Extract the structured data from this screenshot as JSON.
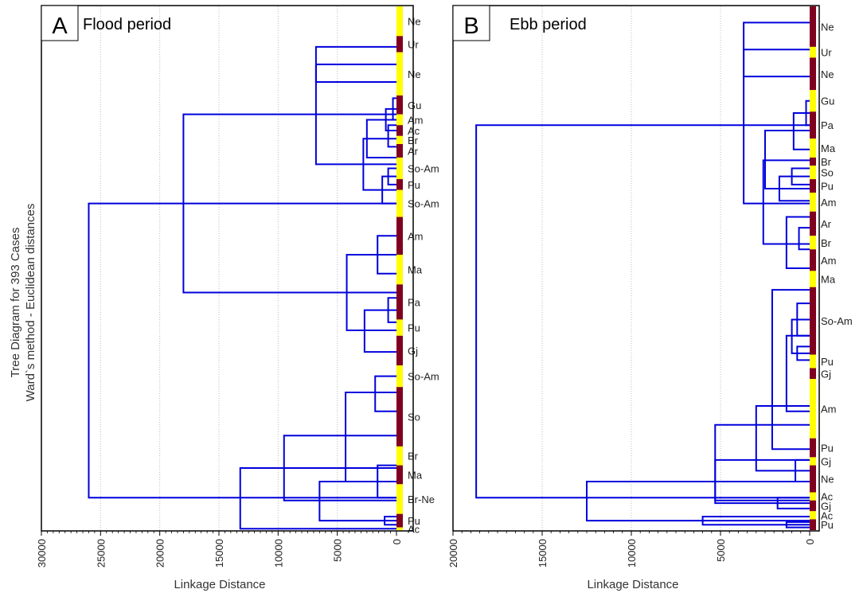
{
  "figure": {
    "ylabel_line1": "Tree Diagram for 393 Cases",
    "ylabel_line2": "Ward`s method - Euclidean distances"
  },
  "colors": {
    "line": "#0000dd",
    "band_yellow": "#ffff00",
    "band_maroon": "#800020",
    "grid": "#bbbbbb"
  },
  "chart_data": [
    {
      "type": "dendrogram",
      "panel_letter": "A",
      "title": "Flood period",
      "xlabel": "Linkage Distance",
      "xlim": [
        30000,
        0
      ],
      "xticks": [
        "30000",
        "25000",
        "20000",
        "15000",
        "10000",
        "5000",
        "0"
      ],
      "xtick_values": [
        30000,
        25000,
        20000,
        15000,
        10000,
        5000,
        0
      ],
      "grid": "vertical dotted",
      "groups": [
        {
          "label": "Ne",
          "start": 0,
          "end": 11,
          "color": "yellow"
        },
        {
          "label": "Ur",
          "start": 11,
          "end": 17,
          "color": "maroon"
        },
        {
          "label": "Ne",
          "start": 17,
          "end": 33,
          "color": "yellow"
        },
        {
          "label": "Gu",
          "start": 33,
          "end": 40,
          "color": "maroon"
        },
        {
          "label": "Am",
          "start": 40,
          "end": 44,
          "color": "yellow"
        },
        {
          "label": "Ac",
          "start": 44,
          "end": 48,
          "color": "maroon"
        },
        {
          "label": "Br",
          "start": 48,
          "end": 51,
          "color": "yellow"
        },
        {
          "label": "Ar",
          "start": 51,
          "end": 56,
          "color": "maroon"
        },
        {
          "label": "So-Am",
          "start": 56,
          "end": 64,
          "color": "yellow"
        },
        {
          "label": "Pu",
          "start": 64,
          "end": 68,
          "color": "maroon"
        },
        {
          "label": "So-Am",
          "start": 68,
          "end": 78,
          "color": "yellow"
        },
        {
          "label": "Am",
          "start": 78,
          "end": 92,
          "color": "maroon"
        },
        {
          "label": "Ma",
          "start": 92,
          "end": 103,
          "color": "yellow"
        },
        {
          "label": "Pa",
          "start": 103,
          "end": 116,
          "color": "maroon"
        },
        {
          "label": "Pu",
          "start": 116,
          "end": 122,
          "color": "yellow"
        },
        {
          "label": "Gj",
          "start": 122,
          "end": 133,
          "color": "maroon"
        },
        {
          "label": "So-Am",
          "start": 133,
          "end": 141,
          "color": "yellow"
        },
        {
          "label": "So",
          "start": 141,
          "end": 163,
          "color": "maroon"
        },
        {
          "label": "Br",
          "start": 163,
          "end": 170,
          "color": "yellow"
        },
        {
          "label": "Ma",
          "start": 170,
          "end": 177,
          "color": "maroon"
        },
        {
          "label": "Br-Ne",
          "start": 177,
          "end": 188,
          "color": "yellow"
        },
        {
          "label": "Pu",
          "start": 188,
          "end": 193,
          "color": "maroon"
        },
        {
          "label": "Ac",
          "start": 193,
          "end": 194,
          "color": "yellow"
        }
      ],
      "merges": [
        {
          "h": 6800,
          "left": {
            "p": 15
          },
          "right": {
            "p": 28
          },
          "p": 21.5
        },
        {
          "h": 300,
          "left": {
            "p": 34
          },
          "right": {
            "p": 42
          },
          "p": 38
        },
        {
          "h": 900,
          "left": {
            "p": 38
          },
          "right": {
            "p": 46
          },
          "p": 42
        },
        {
          "h": 700,
          "left": {
            "p": 44
          },
          "right": {
            "p": 52
          },
          "p": 48
        },
        {
          "h": 2500,
          "left": {
            "p": 42
          },
          "right": {
            "p": 56
          },
          "p": 49
        },
        {
          "h": 700,
          "left": {
            "p": 60
          },
          "right": {
            "p": 66
          },
          "p": 63
        },
        {
          "h": 1200,
          "left": {
            "p": 63
          },
          "right": {
            "p": 73
          },
          "p": 68
        },
        {
          "h": 2800,
          "left": {
            "p": 49
          },
          "right": {
            "p": 68
          },
          "p": 58.5
        },
        {
          "h": 6800,
          "left": {
            "p": 21.5
          },
          "right": {
            "p": 58.5
          },
          "p": 40
        },
        {
          "h": 1600,
          "left": {
            "p": 85
          },
          "right": {
            "p": 99
          },
          "p": 92
        },
        {
          "h": 700,
          "left": {
            "p": 108
          },
          "right": {
            "p": 117
          },
          "p": 112.5
        },
        {
          "h": 2700,
          "left": {
            "p": 112.5
          },
          "right": {
            "p": 128
          },
          "p": 120
        },
        {
          "h": 4200,
          "left": {
            "p": 92
          },
          "right": {
            "p": 120
          },
          "p": 106
        },
        {
          "h": 18000,
          "left": {
            "p": 40
          },
          "right": {
            "p": 106
          },
          "p": 73
        },
        {
          "h": 1800,
          "left": {
            "p": 137
          },
          "right": {
            "p": 150
          },
          "p": 143
        },
        {
          "h": 1600,
          "left": {
            "p": 170
          },
          "right": {
            "p": 182
          },
          "p": 176
        },
        {
          "h": 4300,
          "left": {
            "p": 143
          },
          "right": {
            "p": 176
          },
          "p": 159
        },
        {
          "h": 1000,
          "left": {
            "p": 189
          },
          "right": {
            "p": 192
          },
          "p": 190.5
        },
        {
          "h": 6500,
          "left": {
            "p": 176
          },
          "right": {
            "p": 190.5
          },
          "p": 183
        },
        {
          "h": 9500,
          "left": {
            "p": 159
          },
          "right": {
            "p": 183
          },
          "p": 171
        },
        {
          "h": 13200,
          "left": {
            "p": 171
          },
          "right": {
            "p": 193.5
          },
          "p": 182
        },
        {
          "h": 26000,
          "left": {
            "p": 73
          },
          "right": {
            "p": 182
          },
          "p": 128
        }
      ]
    },
    {
      "type": "dendrogram",
      "panel_letter": "B",
      "title": "Ebb period",
      "xlabel": "Linkage Distance",
      "xlim": [
        20000,
        0
      ],
      "xticks": [
        "20000",
        "15000",
        "10000",
        "5000",
        "0"
      ],
      "xtick_values": [
        20000,
        15000,
        10000,
        5000,
        0
      ],
      "grid": "vertical dotted",
      "groups": [
        {
          "label": "Ne",
          "start": 0,
          "end": 15,
          "color": "maroon"
        },
        {
          "label": "Ur",
          "start": 15,
          "end": 19,
          "color": "yellow"
        },
        {
          "label": "Ne",
          "start": 19,
          "end": 31,
          "color": "maroon"
        },
        {
          "label": "Gu",
          "start": 31,
          "end": 39,
          "color": "yellow"
        },
        {
          "label": "Pa",
          "start": 39,
          "end": 49,
          "color": "maroon"
        },
        {
          "label": "Ma",
          "start": 49,
          "end": 56,
          "color": "yellow"
        },
        {
          "label": "Br",
          "start": 56,
          "end": 59,
          "color": "maroon"
        },
        {
          "label": "So",
          "start": 59,
          "end": 64,
          "color": "yellow"
        },
        {
          "label": "Pu",
          "start": 64,
          "end": 69,
          "color": "maroon"
        },
        {
          "label": "Am",
          "start": 69,
          "end": 76,
          "color": "yellow"
        },
        {
          "label": "Ar",
          "start": 76,
          "end": 85,
          "color": "maroon"
        },
        {
          "label": "Br",
          "start": 85,
          "end": 90,
          "color": "yellow"
        },
        {
          "label": "Am",
          "start": 90,
          "end": 98,
          "color": "maroon"
        },
        {
          "label": "Ma",
          "start": 98,
          "end": 104,
          "color": "yellow"
        },
        {
          "label": "So-Am",
          "start": 104,
          "end": 129,
          "color": "maroon"
        },
        {
          "label": "Pu",
          "start": 129,
          "end": 134,
          "color": "yellow"
        },
        {
          "label": "Gj",
          "start": 134,
          "end": 138,
          "color": "maroon"
        },
        {
          "label": "Am",
          "start": 138,
          "end": 160,
          "color": "yellow"
        },
        {
          "label": "Pu",
          "start": 160,
          "end": 167,
          "color": "maroon"
        },
        {
          "label": "Gj",
          "start": 167,
          "end": 170,
          "color": "yellow"
        },
        {
          "label": "Ne",
          "start": 170,
          "end": 180,
          "color": "maroon"
        },
        {
          "label": "Ac",
          "start": 180,
          "end": 183,
          "color": "yellow"
        },
        {
          "label": "Gj",
          "start": 183,
          "end": 187,
          "color": "maroon"
        },
        {
          "label": "Ac",
          "start": 187,
          "end": 190,
          "color": "yellow"
        },
        {
          "label": "Pu",
          "start": 190,
          "end": 194,
          "color": "maroon"
        }
      ],
      "merges": [
        {
          "h": 3700,
          "left": {
            "p": 6
          },
          "right": {
            "p": 26
          },
          "p": 16
        },
        {
          "h": 200,
          "left": {
            "p": 35
          },
          "right": {
            "p": 44
          },
          "p": 39.5
        },
        {
          "h": 900,
          "left": {
            "p": 39.5
          },
          "right": {
            "p": 53
          },
          "p": 46
        },
        {
          "h": 1000,
          "left": {
            "p": 60
          },
          "right": {
            "p": 66
          },
          "p": 63
        },
        {
          "h": 1700,
          "left": {
            "p": 63
          },
          "right": {
            "p": 72
          },
          "p": 67.5
        },
        {
          "h": 2500,
          "left": {
            "p": 46
          },
          "right": {
            "p": 67.5
          },
          "p": 57
        },
        {
          "h": 600,
          "left": {
            "p": 82
          },
          "right": {
            "p": 90
          },
          "p": 86
        },
        {
          "h": 1300,
          "left": {
            "p": 78
          },
          "right": {
            "p": 97
          },
          "p": 88
        },
        {
          "h": 2600,
          "left": {
            "p": 57
          },
          "right": {
            "p": 88
          },
          "p": 73
        },
        {
          "h": 3700,
          "left": {
            "p": 16
          },
          "right": {
            "p": 73
          },
          "p": 44
        },
        {
          "h": 700,
          "left": {
            "p": 110
          },
          "right": {
            "p": 122
          },
          "p": 116
        },
        {
          "h": 700,
          "left": {
            "p": 126
          },
          "right": {
            "p": 131
          },
          "p": 128.5
        },
        {
          "h": 1000,
          "left": {
            "p": 116
          },
          "right": {
            "p": 128.5
          },
          "p": 122
        },
        {
          "h": 1300,
          "left": {
            "p": 122
          },
          "right": {
            "p": 150
          },
          "p": 136
        },
        {
          "h": 2100,
          "left": {
            "p": 105
          },
          "right": {
            "p": 164
          },
          "p": 134
        },
        {
          "h": 800,
          "left": {
            "p": 168
          },
          "right": {
            "p": 176
          },
          "p": 172
        },
        {
          "h": 3000,
          "left": {
            "p": 148
          },
          "right": {
            "p": 172
          },
          "p": 160
        },
        {
          "h": 5300,
          "left": {
            "p": 155
          },
          "right": {
            "p": 183
          },
          "p": 168
        },
        {
          "h": 1800,
          "left": {
            "p": 182
          },
          "right": {
            "p": 186
          },
          "p": 184
        },
        {
          "h": 5300,
          "left": {
            "p": 168
          },
          "right": {
            "p": 184
          },
          "p": 176
        },
        {
          "h": 1300,
          "left": {
            "p": 191
          },
          "right": {
            "p": 193
          },
          "p": 192
        },
        {
          "h": 6000,
          "left": {
            "p": 189
          },
          "right": {
            "p": 192
          },
          "p": 190.5
        },
        {
          "h": 12500,
          "left": {
            "p": 176
          },
          "right": {
            "p": 190.5
          },
          "p": 182
        },
        {
          "h": 18700,
          "left": {
            "p": 44
          },
          "right": {
            "p": 182
          },
          "p": 118
        }
      ]
    }
  ]
}
